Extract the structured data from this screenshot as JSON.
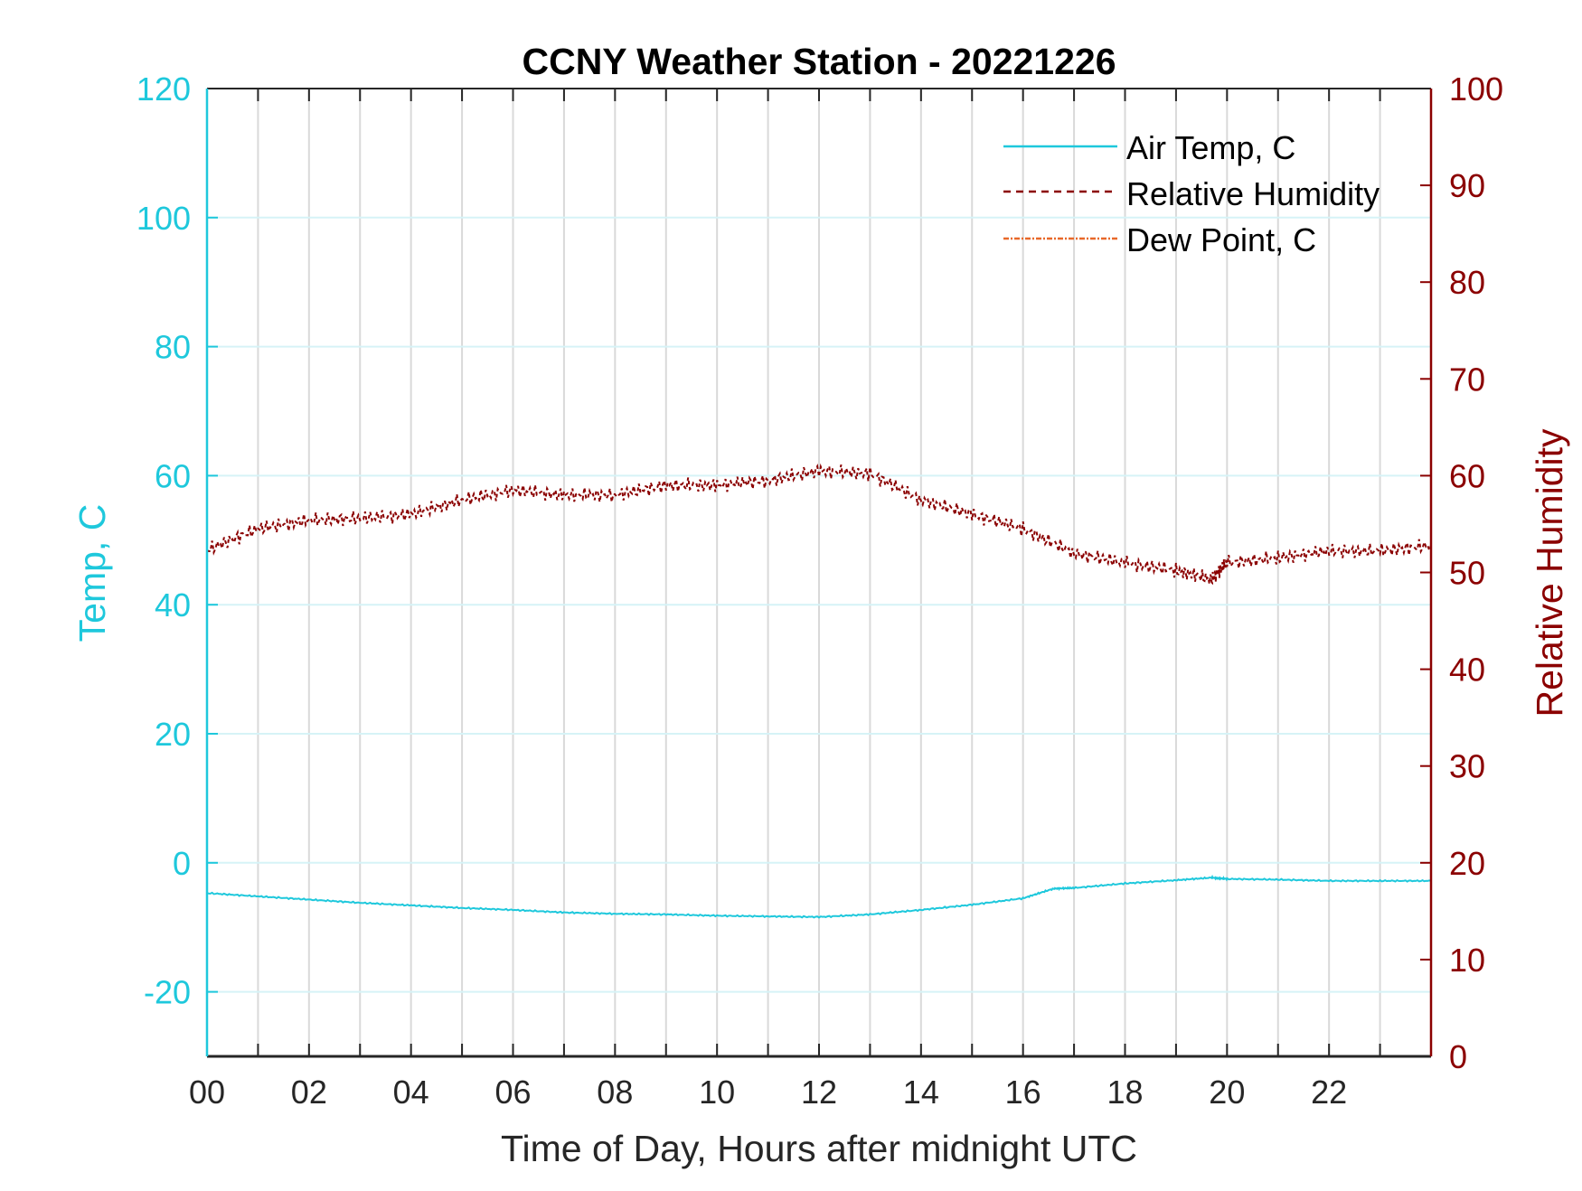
{
  "chart_data": {
    "type": "line",
    "title": "CCNY Weather Station - 20221226",
    "xlabel": "Time of Day, Hours after midnight UTC",
    "ylabel_left": "Temp, C",
    "ylabel_right": "Relative Humidity",
    "xlim": [
      0,
      24
    ],
    "ylim_left": [
      -30,
      120
    ],
    "ylim_right": [
      0,
      100
    ],
    "x_ticks": [
      0,
      2,
      4,
      6,
      8,
      10,
      12,
      14,
      16,
      18,
      20,
      22
    ],
    "x_tick_labels": [
      "00",
      "02",
      "04",
      "06",
      "08",
      "10",
      "12",
      "14",
      "16",
      "18",
      "20",
      "22"
    ],
    "y_left_ticks": [
      -20,
      0,
      20,
      40,
      60,
      80,
      100,
      120
    ],
    "y_right_ticks": [
      0,
      10,
      20,
      30,
      40,
      50,
      60,
      70,
      80,
      90,
      100
    ],
    "grid": true,
    "legend_placement": "top-right",
    "colors": {
      "temp": "#1ec8dc",
      "rh": "#8b0000",
      "dew": "#e8692a",
      "right_axis": "#8b0000"
    },
    "series": [
      {
        "name": "Air Temp, C",
        "axis": "left",
        "style": "solid",
        "x": [
          0,
          1,
          2,
          3,
          4,
          5,
          6,
          7,
          8,
          9,
          10,
          11,
          12,
          13,
          14,
          15,
          16,
          16.6,
          17,
          18,
          19,
          19.7,
          20,
          21,
          22,
          23,
          24
        ],
        "y": [
          -4.7,
          -5.2,
          -5.7,
          -6.2,
          -6.6,
          -7.0,
          -7.3,
          -7.7,
          -7.9,
          -8.0,
          -8.2,
          -8.3,
          -8.4,
          -8.0,
          -7.3,
          -6.5,
          -5.5,
          -4.0,
          -3.9,
          -3.2,
          -2.7,
          -2.3,
          -2.5,
          -2.6,
          -2.8,
          -2.8,
          -2.8
        ]
      },
      {
        "name": "Relative Humidity",
        "axis": "right",
        "style": "dashed",
        "x": [
          0,
          1,
          2,
          3,
          4,
          5,
          6,
          7,
          8,
          9,
          10,
          11,
          12,
          13,
          14,
          15,
          16,
          17,
          18,
          19,
          19.7,
          20,
          21,
          22,
          23,
          24
        ],
        "y": [
          52.3,
          54.5,
          55.4,
          55.6,
          56.0,
          57.5,
          58.5,
          58.0,
          58.0,
          59.0,
          59.0,
          59.5,
          60.5,
          60.2,
          57.5,
          56.0,
          54.5,
          52.0,
          51.0,
          50.2,
          49.3,
          51.0,
          51.5,
          52.2,
          52.2,
          52.8
        ]
      },
      {
        "name": "Dew Point, C",
        "axis": "left",
        "style": "dashdot",
        "x": [],
        "y": []
      }
    ]
  }
}
